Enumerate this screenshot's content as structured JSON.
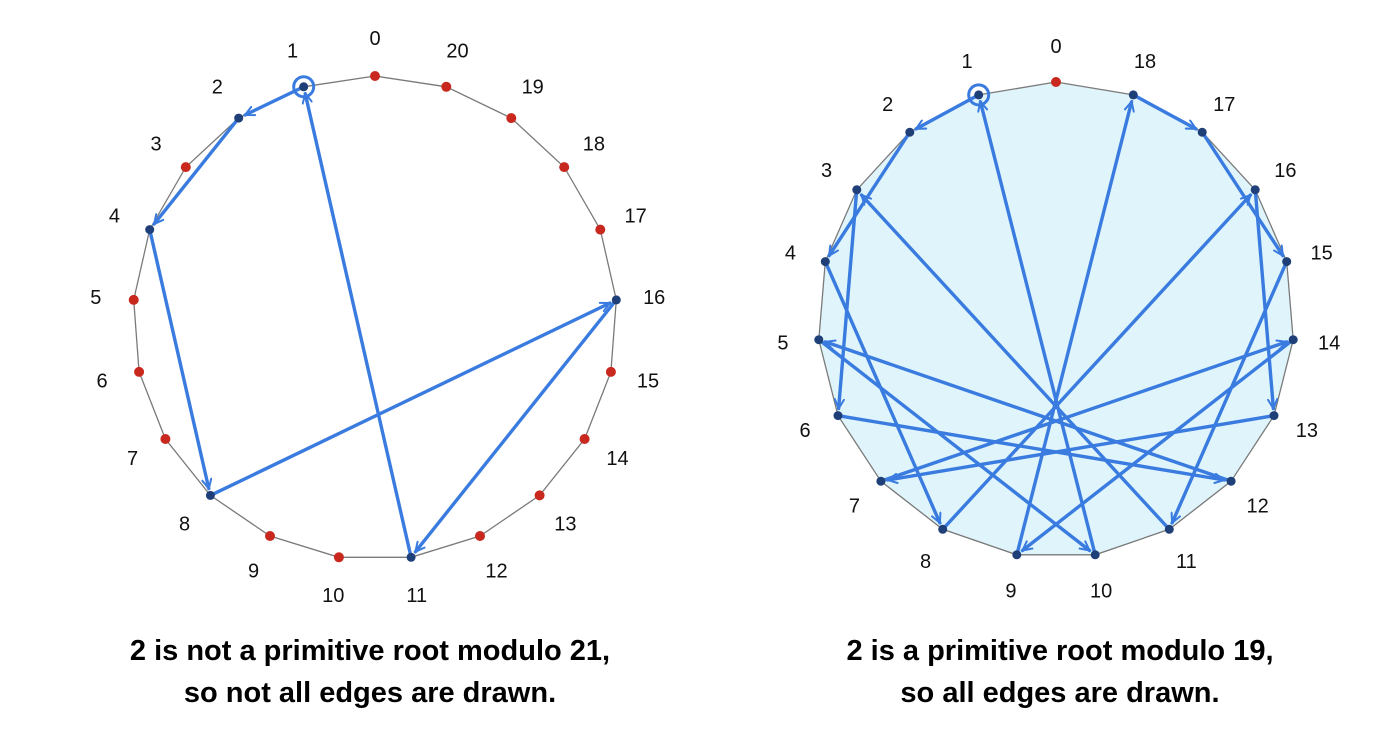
{
  "diagrams": [
    {
      "modulus": 21,
      "caption_line1": "2 is not a primitive root modulo 21,",
      "caption_line2": "so not all edges are drawn.",
      "labels": [
        "0",
        "1",
        "2",
        "3",
        "4",
        "5",
        "6",
        "7",
        "8",
        "9",
        "10",
        "11",
        "12",
        "13",
        "14",
        "15",
        "16",
        "17",
        "18",
        "19",
        "20"
      ],
      "start": 1,
      "cycle": [
        1,
        2,
        4,
        8,
        16,
        11,
        1
      ],
      "visited": [
        1,
        2,
        4,
        8,
        11,
        16
      ],
      "shaded": false
    },
    {
      "modulus": 19,
      "caption_line1": "2 is a primitive root modulo 19,",
      "caption_line2": "so all edges are drawn.",
      "labels": [
        "0",
        "1",
        "2",
        "3",
        "4",
        "5",
        "6",
        "7",
        "8",
        "9",
        "10",
        "11",
        "12",
        "13",
        "14",
        "15",
        "16",
        "17",
        "18"
      ],
      "start": 1,
      "cycle": [
        1,
        2,
        4,
        8,
        16,
        13,
        7,
        14,
        9,
        18,
        17,
        15,
        11,
        3,
        6,
        12,
        5,
        10,
        1
      ],
      "visited": [
        1,
        2,
        3,
        4,
        5,
        6,
        7,
        8,
        9,
        10,
        11,
        12,
        13,
        14,
        15,
        16,
        17,
        18
      ],
      "shaded": true
    }
  ],
  "colors": {
    "edge": "#3a7be0",
    "visited_node": "#1e3f78",
    "unvisited_node": "#c8281e",
    "polygon": "#7a7a7a",
    "shade": "#dff4fb",
    "label": "#111111"
  }
}
